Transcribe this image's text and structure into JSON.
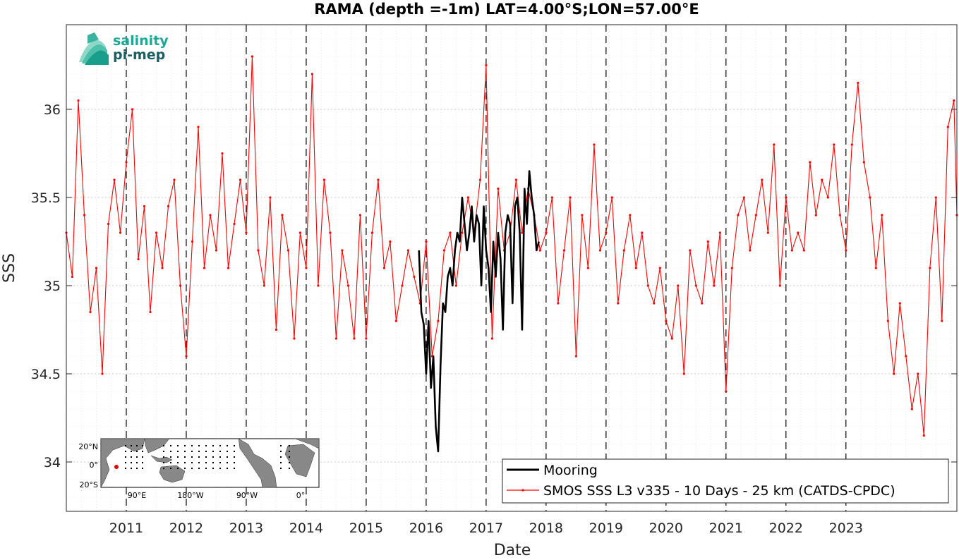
{
  "logo": {
    "line1": "salinity",
    "line2": "pi-mep",
    "color1": "#1aa897",
    "color2": "#1b5e62"
  },
  "inset_map": {
    "lat_labels": [
      "20°N",
      "0°",
      "20°S"
    ],
    "lon_labels": [
      "90°E",
      "180°W",
      "90°W",
      "0°"
    ],
    "land_color": "#888888",
    "marker_color": "#e00000"
  },
  "chart_data": {
    "type": "line",
    "title": "RAMA (depth =-1m) LAT=4.00°S;LON=57.00°E",
    "xlabel": "Date",
    "ylabel": "SSS",
    "xlim": [
      2010.0,
      2024.85
    ],
    "ylim": [
      33.72,
      36.48
    ],
    "yticks": [
      34,
      34.5,
      35,
      35.5,
      36
    ],
    "ytick_labels": [
      "34",
      "34.5",
      "35",
      "35.5",
      "36"
    ],
    "xticks": [
      2011,
      2012,
      2013,
      2014,
      2015,
      2016,
      2017,
      2018,
      2019,
      2020,
      2021,
      2022,
      2023
    ],
    "xtick_labels": [
      "2011",
      "2012",
      "2013",
      "2014",
      "2015",
      "2016",
      "2017",
      "2018",
      "2019",
      "2020",
      "2021",
      "2022",
      "2023"
    ],
    "grid": true,
    "legend_position": "bottom-right",
    "series": [
      {
        "name": "Mooring",
        "color": "#000000",
        "x": [
          2015.88,
          2015.92,
          2015.96,
          2016.0,
          2016.04,
          2016.08,
          2016.12,
          2016.16,
          2016.2,
          2016.24,
          2016.28,
          2016.32,
          2016.36,
          2016.4,
          2016.44,
          2016.48,
          2016.52,
          2016.56,
          2016.6,
          2016.64,
          2016.68,
          2016.72,
          2016.76,
          2016.8,
          2016.84,
          2016.88,
          2016.92,
          2016.96,
          2017.0,
          2017.04,
          2017.08,
          2017.12,
          2017.16,
          2017.2,
          2017.24,
          2017.28,
          2017.32,
          2017.36,
          2017.4,
          2017.44,
          2017.48,
          2017.52,
          2017.56,
          2017.6,
          2017.64,
          2017.68,
          2017.72,
          2017.76,
          2017.8,
          2017.84,
          2017.88
        ],
        "y": [
          35.2,
          34.85,
          34.78,
          34.5,
          34.8,
          34.42,
          34.6,
          34.2,
          34.06,
          34.55,
          34.9,
          34.85,
          35.05,
          35.1,
          35.0,
          35.2,
          35.3,
          35.25,
          35.5,
          35.35,
          35.2,
          35.3,
          35.45,
          35.25,
          35.4,
          35.35,
          35.0,
          35.45,
          35.2,
          35.1,
          34.85,
          35.25,
          35.05,
          35.3,
          35.15,
          34.75,
          35.3,
          35.4,
          35.35,
          34.9,
          35.45,
          35.5,
          35.3,
          34.75,
          35.55,
          35.35,
          35.65,
          35.5,
          35.4,
          35.2,
          35.25
        ]
      },
      {
        "name": "SMOS SSS L3 v335 - 10 Days - 25 km (CATDS-CPDC)",
        "color": "#ff0000",
        "x": [
          2010.0,
          2010.1,
          2010.2,
          2010.3,
          2010.4,
          2010.5,
          2010.6,
          2010.7,
          2010.8,
          2010.9,
          2011.0,
          2011.1,
          2011.2,
          2011.3,
          2011.4,
          2011.5,
          2011.6,
          2011.7,
          2011.8,
          2011.9,
          2012.0,
          2012.1,
          2012.2,
          2012.3,
          2012.4,
          2012.5,
          2012.6,
          2012.7,
          2012.8,
          2012.9,
          2013.0,
          2013.1,
          2013.2,
          2013.3,
          2013.4,
          2013.5,
          2013.6,
          2013.7,
          2013.8,
          2013.9,
          2014.0,
          2014.1,
          2014.2,
          2014.3,
          2014.4,
          2014.5,
          2014.6,
          2014.7,
          2014.8,
          2014.9,
          2015.0,
          2015.1,
          2015.2,
          2015.3,
          2015.4,
          2015.5,
          2015.6,
          2015.7,
          2015.8,
          2015.9,
          2016.0,
          2016.1,
          2016.2,
          2016.3,
          2016.4,
          2016.5,
          2016.6,
          2016.7,
          2016.8,
          2016.9,
          2017.0,
          2017.1,
          2017.2,
          2017.3,
          2017.4,
          2017.5,
          2017.6,
          2017.7,
          2017.8,
          2017.9,
          2018.0,
          2018.1,
          2018.2,
          2018.3,
          2018.4,
          2018.5,
          2018.6,
          2018.7,
          2018.8,
          2018.9,
          2019.0,
          2019.1,
          2019.2,
          2019.3,
          2019.4,
          2019.5,
          2019.6,
          2019.7,
          2019.8,
          2019.9,
          2020.0,
          2020.1,
          2020.2,
          2020.3,
          2020.4,
          2020.5,
          2020.6,
          2020.7,
          2020.8,
          2020.9,
          2021.0,
          2021.1,
          2021.2,
          2021.3,
          2021.4,
          2021.5,
          2021.6,
          2021.7,
          2021.8,
          2021.9,
          2022.0,
          2022.1,
          2022.2,
          2022.3,
          2022.4,
          2022.5,
          2022.6,
          2022.7,
          2022.8,
          2022.9,
          2023.0,
          2023.1,
          2023.2,
          2023.3,
          2023.4,
          2023.5,
          2023.6,
          2023.7,
          2023.8,
          2023.9,
          2024.0,
          2024.1,
          2024.2,
          2024.3,
          2024.4,
          2024.5,
          2024.6,
          2024.7,
          2024.8,
          2024.85
        ],
        "y": [
          35.3,
          35.05,
          36.05,
          35.4,
          34.85,
          35.1,
          34.5,
          35.35,
          35.6,
          35.3,
          35.7,
          36.0,
          35.15,
          35.45,
          34.85,
          35.3,
          35.1,
          35.45,
          35.6,
          35.0,
          34.6,
          35.25,
          35.9,
          35.1,
          35.4,
          35.2,
          35.75,
          35.1,
          35.35,
          35.6,
          35.3,
          36.3,
          35.2,
          35.0,
          35.5,
          34.75,
          35.4,
          35.2,
          34.7,
          35.3,
          35.1,
          36.2,
          35.0,
          35.6,
          35.3,
          34.7,
          35.2,
          35.0,
          34.7,
          35.4,
          34.7,
          35.3,
          35.6,
          35.1,
          35.25,
          34.8,
          35.0,
          35.2,
          35.05,
          34.9,
          35.25,
          34.6,
          34.8,
          35.2,
          35.3,
          35.0,
          35.3,
          35.5,
          35.3,
          35.6,
          36.25,
          34.7,
          35.55,
          35.2,
          35.3,
          35.6,
          35.3,
          35.55,
          35.4,
          35.2,
          35.3,
          35.5,
          34.9,
          35.2,
          35.5,
          34.6,
          35.4,
          35.1,
          35.8,
          35.2,
          35.3,
          35.5,
          34.9,
          35.2,
          35.4,
          35.1,
          35.3,
          35.0,
          34.9,
          35.1,
          34.8,
          34.7,
          35.0,
          34.5,
          35.2,
          35.0,
          34.9,
          35.25,
          35.0,
          35.3,
          34.4,
          35.1,
          35.4,
          35.5,
          35.2,
          35.4,
          35.6,
          35.3,
          35.8,
          35.0,
          35.5,
          35.2,
          35.3,
          35.2,
          35.7,
          35.4,
          35.6,
          35.5,
          35.8,
          35.4,
          35.2,
          35.8,
          36.15,
          35.7,
          35.5,
          35.1,
          35.4,
          34.8,
          34.5,
          34.9,
          34.6,
          34.3,
          34.5,
          34.15,
          35.1,
          35.5,
          34.8,
          35.9,
          36.05,
          35.4
        ]
      }
    ]
  }
}
